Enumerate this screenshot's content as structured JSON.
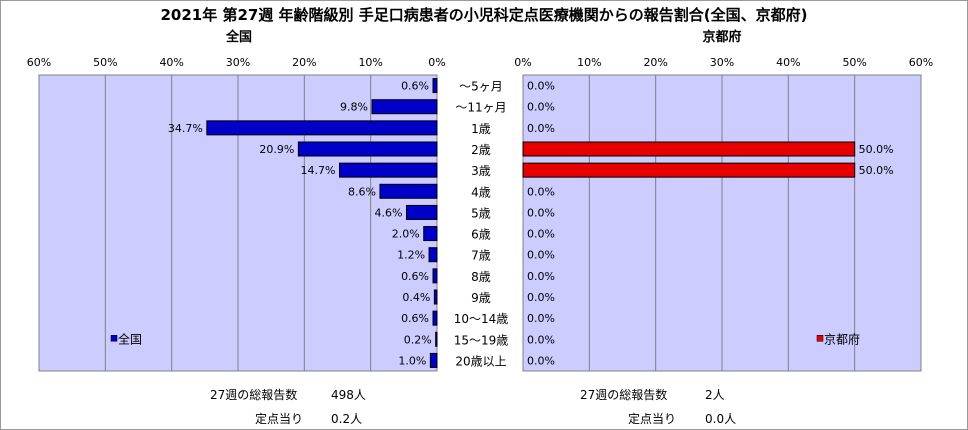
{
  "title": "2021年 第27週 年齢階級別 手足口病患者の小児科定点医療機関からの報告割合(全国、京都府)",
  "colors": {
    "national_bar": "#0000c8",
    "kyoto_bar": "#e60000",
    "plot_bg": "#ccccff"
  },
  "chart_data": [
    {
      "type": "bar",
      "orientation": "horizontal",
      "direction": "right-to-left",
      "title": "全国",
      "categories": [
        "～5ヶ月",
        "～11ヶ月",
        "1歳",
        "2歳",
        "3歳",
        "4歳",
        "5歳",
        "6歳",
        "7歳",
        "8歳",
        "9歳",
        "10～14歳",
        "15～19歳",
        "20歳以上"
      ],
      "series": [
        {
          "name": "全国",
          "values": [
            0.6,
            9.8,
            34.7,
            20.9,
            14.7,
            8.6,
            4.6,
            2.0,
            1.2,
            0.6,
            0.4,
            0.6,
            0.2,
            1.0
          ]
        }
      ],
      "data_labels": [
        "0.6%",
        "9.8%",
        "34.7%",
        "20.9%",
        "14.7%",
        "8.6%",
        "4.6%",
        "2.0%",
        "1.2%",
        "0.6%",
        "0.4%",
        "0.6%",
        "0.2%",
        "1.0%"
      ],
      "xlim": [
        0,
        60
      ],
      "xticks": [
        "60%",
        "50%",
        "40%",
        "30%",
        "20%",
        "10%",
        "0%"
      ],
      "grid": true,
      "legend": "bottom-left"
    },
    {
      "type": "bar",
      "orientation": "horizontal",
      "direction": "left-to-right",
      "title": "京都府",
      "categories": [
        "～5ヶ月",
        "～11ヶ月",
        "1歳",
        "2歳",
        "3歳",
        "4歳",
        "5歳",
        "6歳",
        "7歳",
        "8歳",
        "9歳",
        "10～14歳",
        "15～19歳",
        "20歳以上"
      ],
      "series": [
        {
          "name": "京都府",
          "values": [
            0.0,
            0.0,
            0.0,
            50.0,
            50.0,
            0.0,
            0.0,
            0.0,
            0.0,
            0.0,
            0.0,
            0.0,
            0.0,
            0.0
          ]
        }
      ],
      "data_labels": [
        "0.0%",
        "0.0%",
        "0.0%",
        "50.0%",
        "50.0%",
        "0.0%",
        "0.0%",
        "0.0%",
        "0.0%",
        "0.0%",
        "0.0%",
        "0.0%",
        "0.0%",
        "0.0%"
      ],
      "xlim": [
        0,
        60
      ],
      "xticks": [
        "0%",
        "10%",
        "20%",
        "30%",
        "40%",
        "50%",
        "60%"
      ],
      "grid": true,
      "legend": "bottom-right"
    }
  ],
  "stats": {
    "national": {
      "total_label": "27週の総報告数",
      "total_value": "498人",
      "per_site_label": "定点当り",
      "per_site_value": "0.2人"
    },
    "kyoto": {
      "total_label": "27週の総報告数",
      "total_value": "2人",
      "per_site_label": "定点当り",
      "per_site_value": "0.0人"
    }
  }
}
